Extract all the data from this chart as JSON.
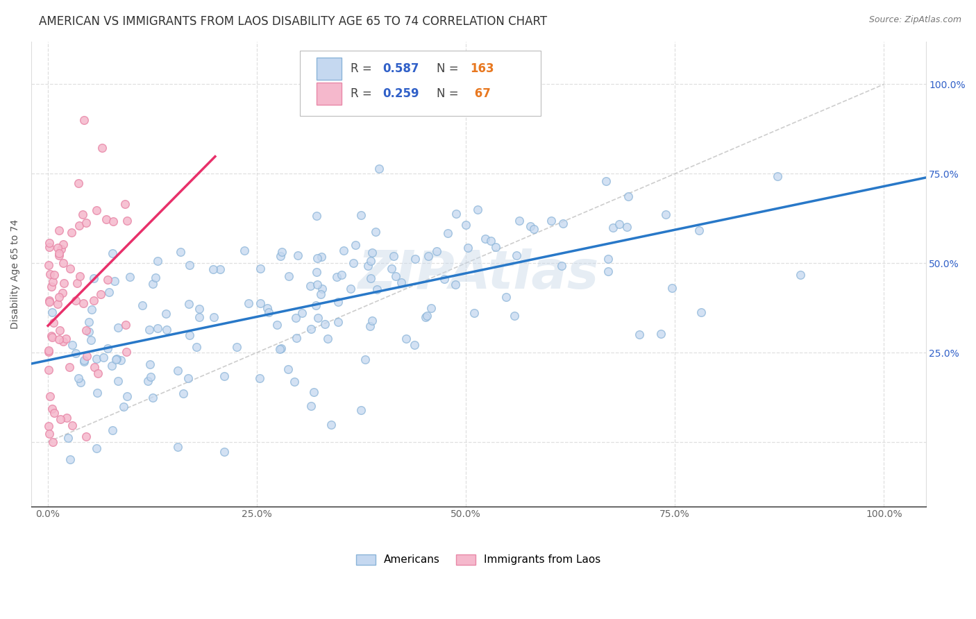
{
  "title": "AMERICAN VS IMMIGRANTS FROM LAOS DISABILITY AGE 65 TO 74 CORRELATION CHART",
  "source": "Source: ZipAtlas.com",
  "ylabel": "Disability Age 65 to 74",
  "watermark": "ZIPAtlas",
  "R_am": 0.587,
  "N_am": 163,
  "R_im": 0.259,
  "N_im": 67,
  "xlim": [
    -0.02,
    1.05
  ],
  "ylim": [
    -0.18,
    1.12
  ],
  "xticks": [
    0.0,
    0.25,
    0.5,
    0.75,
    1.0
  ],
  "yticks": [
    0.0,
    0.25,
    0.5,
    0.75,
    1.0
  ],
  "xticklabels": [
    "0.0%",
    "25.0%",
    "50.0%",
    "75.0%",
    "100.0%"
  ],
  "yticklabels_right": [
    "25.0%",
    "50.0%",
    "75.0%",
    "100.0%"
  ],
  "background_color": "#ffffff",
  "grid_color": "#d8d8d8",
  "am_scatter_color": "#c5d8f0",
  "am_scatter_edge": "#8ab4d8",
  "im_scatter_color": "#f5b8cc",
  "im_scatter_edge": "#e888a8",
  "am_line_color": "#2878c8",
  "im_line_color": "#e8306a",
  "diagonal_color": "#c8c8c8",
  "legend_text_color": "#3060c8",
  "legend_N_color": "#e87820",
  "title_fontsize": 12,
  "tick_fontsize": 10,
  "right_tick_color": "#3060c8",
  "am_seed": 12,
  "im_seed": 77
}
